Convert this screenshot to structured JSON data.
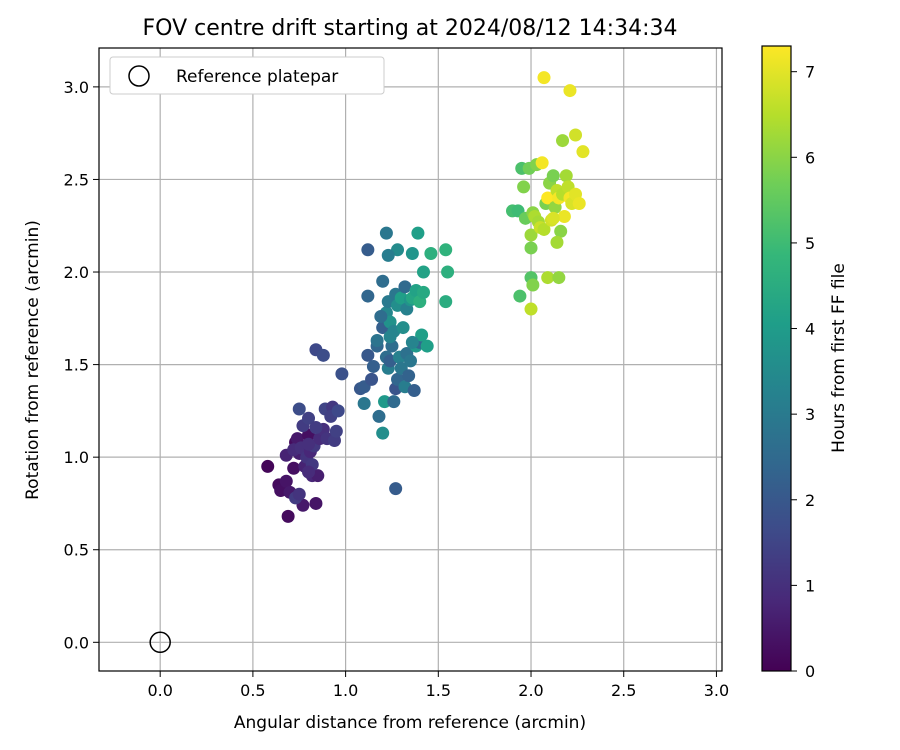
{
  "chart_data": {
    "type": "scatter",
    "title": "FOV centre drift starting at 2024/08/12 14:34:34",
    "xlabel": "Angular distance from reference (arcmin)",
    "ylabel": "Rotation from reference (arcmin)",
    "xlim": [
      -0.33,
      3.03
    ],
    "ylim": [
      -0.155,
      3.21
    ],
    "xticks": [
      "0.0",
      "0.5",
      "1.0",
      "1.5",
      "2.0",
      "2.5",
      "3.0"
    ],
    "yticks": [
      "0.0",
      "0.5",
      "1.0",
      "1.5",
      "2.0",
      "2.5",
      "3.0"
    ],
    "grid": true,
    "legend": {
      "placement": "top-left",
      "entries": [
        "Reference platepar"
      ]
    },
    "reference_point": {
      "name": "Reference platepar",
      "x": 0.0,
      "y": 0.0,
      "marker": "open-circle",
      "color": "#000000"
    },
    "colorbar": {
      "label": "Hours from first FF file",
      "range": [
        0,
        7.3
      ],
      "ticks": [
        "0",
        "1",
        "2",
        "3",
        "4",
        "5",
        "6",
        "7"
      ],
      "colormap": "viridis"
    },
    "points": [
      [
        0.58,
        0.95,
        0.1
      ],
      [
        0.64,
        0.85,
        0.2
      ],
      [
        0.65,
        0.82,
        0.3
      ],
      [
        0.69,
        0.68,
        0.2
      ],
      [
        0.68,
        0.87,
        0.4
      ],
      [
        0.7,
        0.81,
        0.5
      ],
      [
        0.72,
        0.94,
        0.3
      ],
      [
        0.73,
        1.08,
        0.2
      ],
      [
        0.74,
        1.1,
        0.5
      ],
      [
        0.75,
        1.02,
        0.6
      ],
      [
        0.77,
        0.74,
        0.5
      ],
      [
        0.78,
        0.95,
        0.7
      ],
      [
        0.8,
        1.12,
        0.3
      ],
      [
        0.82,
        0.9,
        0.8
      ],
      [
        0.85,
        0.9,
        0.6
      ],
      [
        0.84,
        0.75,
        0.4
      ],
      [
        0.68,
        1.01,
        0.7
      ],
      [
        0.72,
        1.04,
        0.9
      ],
      [
        0.76,
        1.05,
        1.0
      ],
      [
        0.79,
        1.0,
        1.1
      ],
      [
        0.81,
        1.03,
        0.8
      ],
      [
        0.83,
        1.06,
        1.2
      ],
      [
        0.86,
        1.1,
        0.9
      ],
      [
        0.88,
        1.15,
        1.0
      ],
      [
        0.8,
        1.07,
        1.0
      ],
      [
        0.82,
        0.96,
        1.2
      ],
      [
        0.77,
        1.17,
        1.3
      ],
      [
        0.8,
        1.21,
        1.4
      ],
      [
        0.84,
        1.16,
        1.3
      ],
      [
        0.89,
        1.26,
        1.5
      ],
      [
        0.93,
        1.27,
        1.2
      ],
      [
        0.92,
        1.22,
        1.4
      ],
      [
        0.9,
        1.1,
        1.1
      ],
      [
        0.94,
        1.09,
        1.3
      ],
      [
        0.95,
        1.14,
        1.4
      ],
      [
        0.96,
        1.25,
        1.6
      ],
      [
        0.75,
        1.26,
        1.7
      ],
      [
        0.73,
        0.78,
        1.3
      ],
      [
        0.75,
        0.8,
        1.1
      ],
      [
        0.8,
        0.92,
        0.9
      ],
      [
        0.84,
        1.58,
        1.6
      ],
      [
        0.88,
        1.55,
        1.7
      ],
      [
        0.98,
        1.45,
        1.8
      ],
      [
        1.08,
        1.37,
        2.0
      ],
      [
        1.1,
        1.38,
        2.1
      ],
      [
        1.12,
        1.55,
        2.0
      ],
      [
        1.14,
        1.42,
        1.9
      ],
      [
        1.15,
        1.49,
        2.2
      ],
      [
        1.17,
        1.6,
        2.4
      ],
      [
        1.18,
        1.22,
        2.6
      ],
      [
        1.2,
        1.13,
        3.6
      ],
      [
        1.21,
        1.3,
        3.9
      ],
      [
        1.22,
        1.54,
        2.6
      ],
      [
        1.23,
        1.48,
        3.1
      ],
      [
        1.24,
        1.52,
        2.2
      ],
      [
        1.25,
        1.6,
        2.6
      ],
      [
        1.26,
        1.3,
        2.5
      ],
      [
        1.27,
        1.37,
        1.9
      ],
      [
        1.28,
        1.42,
        2.4
      ],
      [
        1.29,
        1.54,
        3.2
      ],
      [
        1.3,
        1.48,
        2.9
      ],
      [
        1.32,
        1.38,
        3.1
      ],
      [
        1.33,
        1.56,
        2.7
      ],
      [
        1.34,
        1.44,
        2.3
      ],
      [
        1.35,
        1.52,
        2.9
      ],
      [
        1.37,
        1.36,
        2.2
      ],
      [
        1.38,
        1.6,
        3.9
      ],
      [
        1.4,
        1.62,
        2.4
      ],
      [
        1.41,
        1.66,
        4.1
      ],
      [
        1.2,
        1.7,
        2.2
      ],
      [
        1.22,
        1.78,
        3.4
      ],
      [
        1.23,
        1.84,
        3.0
      ],
      [
        1.24,
        1.73,
        3.7
      ],
      [
        1.26,
        1.68,
        3.3
      ],
      [
        1.27,
        1.88,
        2.9
      ],
      [
        1.28,
        1.82,
        3.6
      ],
      [
        1.3,
        1.86,
        4.1
      ],
      [
        1.32,
        1.92,
        2.5
      ],
      [
        1.33,
        1.8,
        3.2
      ],
      [
        1.35,
        1.85,
        3.8
      ],
      [
        1.36,
        1.86,
        4.3
      ],
      [
        1.38,
        1.9,
        4.2
      ],
      [
        1.4,
        1.84,
        4.6
      ],
      [
        1.42,
        1.89,
        4.4
      ],
      [
        1.44,
        1.6,
        4.1
      ],
      [
        1.12,
        2.12,
        2.1
      ],
      [
        1.22,
        2.21,
        2.9
      ],
      [
        1.28,
        2.12,
        3.5
      ],
      [
        1.36,
        2.1,
        3.8
      ],
      [
        1.42,
        2.0,
        4.2
      ],
      [
        1.46,
        2.1,
        4.6
      ],
      [
        1.54,
        2.12,
        4.7
      ],
      [
        1.55,
        2.0,
        4.6
      ],
      [
        1.54,
        1.84,
        4.5
      ],
      [
        1.39,
        2.21,
        4.1
      ],
      [
        1.23,
        2.09,
        3.1
      ],
      [
        1.2,
        1.95,
        2.6
      ],
      [
        1.12,
        1.87,
        2.4
      ],
      [
        1.1,
        1.29,
        2.9
      ],
      [
        1.19,
        1.76,
        2.6
      ],
      [
        1.27,
        0.83,
        2.1
      ],
      [
        1.24,
        1.65,
        3.3
      ],
      [
        1.31,
        1.7,
        3.6
      ],
      [
        1.36,
        1.62,
        3.3
      ],
      [
        1.17,
        1.63,
        2.8
      ],
      [
        1.9,
        2.33,
        5.1
      ],
      [
        1.93,
        2.33,
        5.0
      ],
      [
        1.95,
        2.56,
        5.2
      ],
      [
        1.96,
        2.46,
        5.9
      ],
      [
        1.97,
        2.29,
        5.6
      ],
      [
        1.99,
        2.56,
        5.7
      ],
      [
        2.0,
        2.2,
        6.2
      ],
      [
        2.01,
        2.32,
        6.0
      ],
      [
        2.02,
        2.3,
        6.4
      ],
      [
        2.03,
        2.58,
        5.9
      ],
      [
        2.04,
        2.27,
        6.3
      ],
      [
        2.05,
        2.24,
        6.7
      ],
      [
        2.06,
        2.59,
        7.2
      ],
      [
        2.07,
        2.23,
        6.5
      ],
      [
        2.08,
        2.37,
        5.8
      ],
      [
        2.09,
        2.4,
        7.3
      ],
      [
        2.1,
        2.48,
        6.0
      ],
      [
        2.11,
        2.28,
        6.8
      ],
      [
        2.12,
        2.52,
        5.8
      ],
      [
        2.13,
        2.35,
        6.1
      ],
      [
        2.14,
        2.44,
        6.6
      ],
      [
        2.15,
        2.4,
        7.2
      ],
      [
        2.16,
        2.22,
        6.0
      ],
      [
        2.17,
        2.42,
        6.5
      ],
      [
        2.18,
        2.3,
        7.1
      ],
      [
        2.19,
        2.52,
        6.3
      ],
      [
        2.2,
        2.46,
        6.6
      ],
      [
        2.21,
        2.4,
        7.2
      ],
      [
        2.22,
        2.37,
        6.9
      ],
      [
        2.24,
        2.42,
        7.0
      ],
      [
        2.26,
        2.37,
        7.1
      ],
      [
        2.07,
        3.05,
        7.2
      ],
      [
        2.21,
        2.98,
        7.1
      ],
      [
        2.17,
        2.71,
        6.2
      ],
      [
        2.24,
        2.74,
        6.8
      ],
      [
        2.28,
        2.65,
        7.0
      ],
      [
        1.94,
        1.87,
        5.2
      ],
      [
        2.0,
        1.97,
        5.3
      ],
      [
        2.01,
        1.93,
        5.9
      ],
      [
        2.0,
        1.8,
        6.6
      ],
      [
        2.09,
        1.97,
        6.4
      ],
      [
        2.15,
        1.97,
        6.1
      ],
      [
        2.14,
        2.16,
        6.3
      ],
      [
        2.0,
        2.13,
        5.8
      ],
      [
        2.12,
        2.29,
        6.9
      ]
    ]
  }
}
